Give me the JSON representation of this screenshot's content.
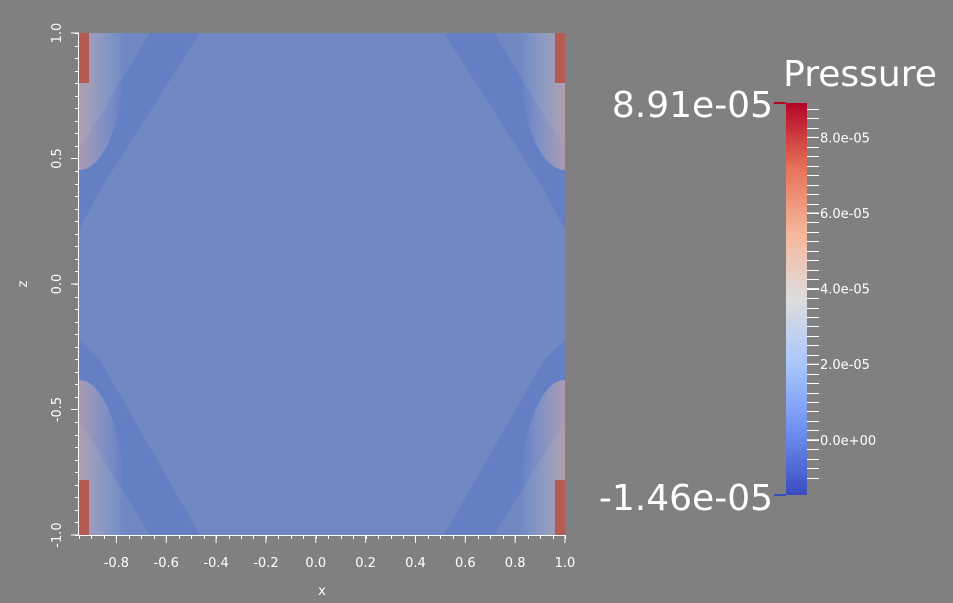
{
  "chart_data": {
    "type": "heatmap",
    "title": "",
    "xlabel": "x",
    "ylabel": "z",
    "xlim": [
      -0.95,
      1.0
    ],
    "ylim": [
      -1.0,
      1.0
    ],
    "x_ticks": [
      -0.8,
      -0.6,
      -0.4,
      -0.2,
      0.0,
      0.2,
      0.4,
      0.6,
      0.8,
      1.0
    ],
    "x_tick_labels": [
      "-0.8",
      "-0.6",
      "-0.4",
      "-0.2",
      "0.0",
      "0.2",
      "0.4",
      "0.6",
      "0.8",
      "1.0"
    ],
    "y_ticks": [
      -1.0,
      -0.5,
      0.0,
      0.5,
      1.0
    ],
    "y_tick_labels": [
      "-1.0",
      "-0.5",
      "0.0",
      "0.5",
      "1.0"
    ],
    "colorbar": {
      "title": "Pressure",
      "min": -1.46e-05,
      "max": 8.91e-05,
      "min_label": "-1.46e-05",
      "max_label": "8.91e-05",
      "ticks": [
        0.0,
        2e-05,
        4e-05,
        6e-05,
        8e-05
      ],
      "tick_labels": [
        "0.0e+00",
        "2.0e-05",
        "4.0e-05",
        "6.0e-05",
        "8.0e-05"
      ],
      "colormap": [
        "#3b4cc0",
        "#6f91f2",
        "#aac7fd",
        "#dddddd",
        "#f6b79b",
        "#e67259",
        "#b40426"
      ]
    }
  }
}
